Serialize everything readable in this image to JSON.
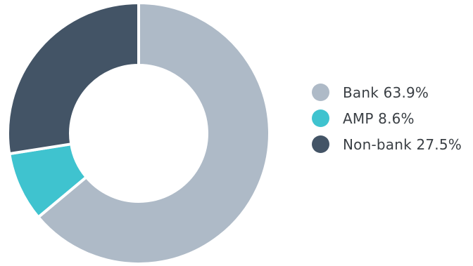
{
  "chart_data": {
    "type": "pie",
    "variant": "donut",
    "title": "",
    "categories": [
      "Bank",
      "AMP",
      "Non-bank"
    ],
    "values": [
      63.9,
      8.6,
      27.5
    ],
    "unit": "%",
    "series": [
      {
        "name": "Bank",
        "value": 63.9,
        "color": "#aebac7",
        "label": "Bank 63.9%"
      },
      {
        "name": "AMP",
        "value": 8.6,
        "color": "#3fc3cf",
        "label": "AMP 8.6%"
      },
      {
        "name": "Non-bank",
        "value": 27.5,
        "color": "#435466",
        "label": "Non-bank 27.5%"
      }
    ],
    "legend_position": "right"
  }
}
